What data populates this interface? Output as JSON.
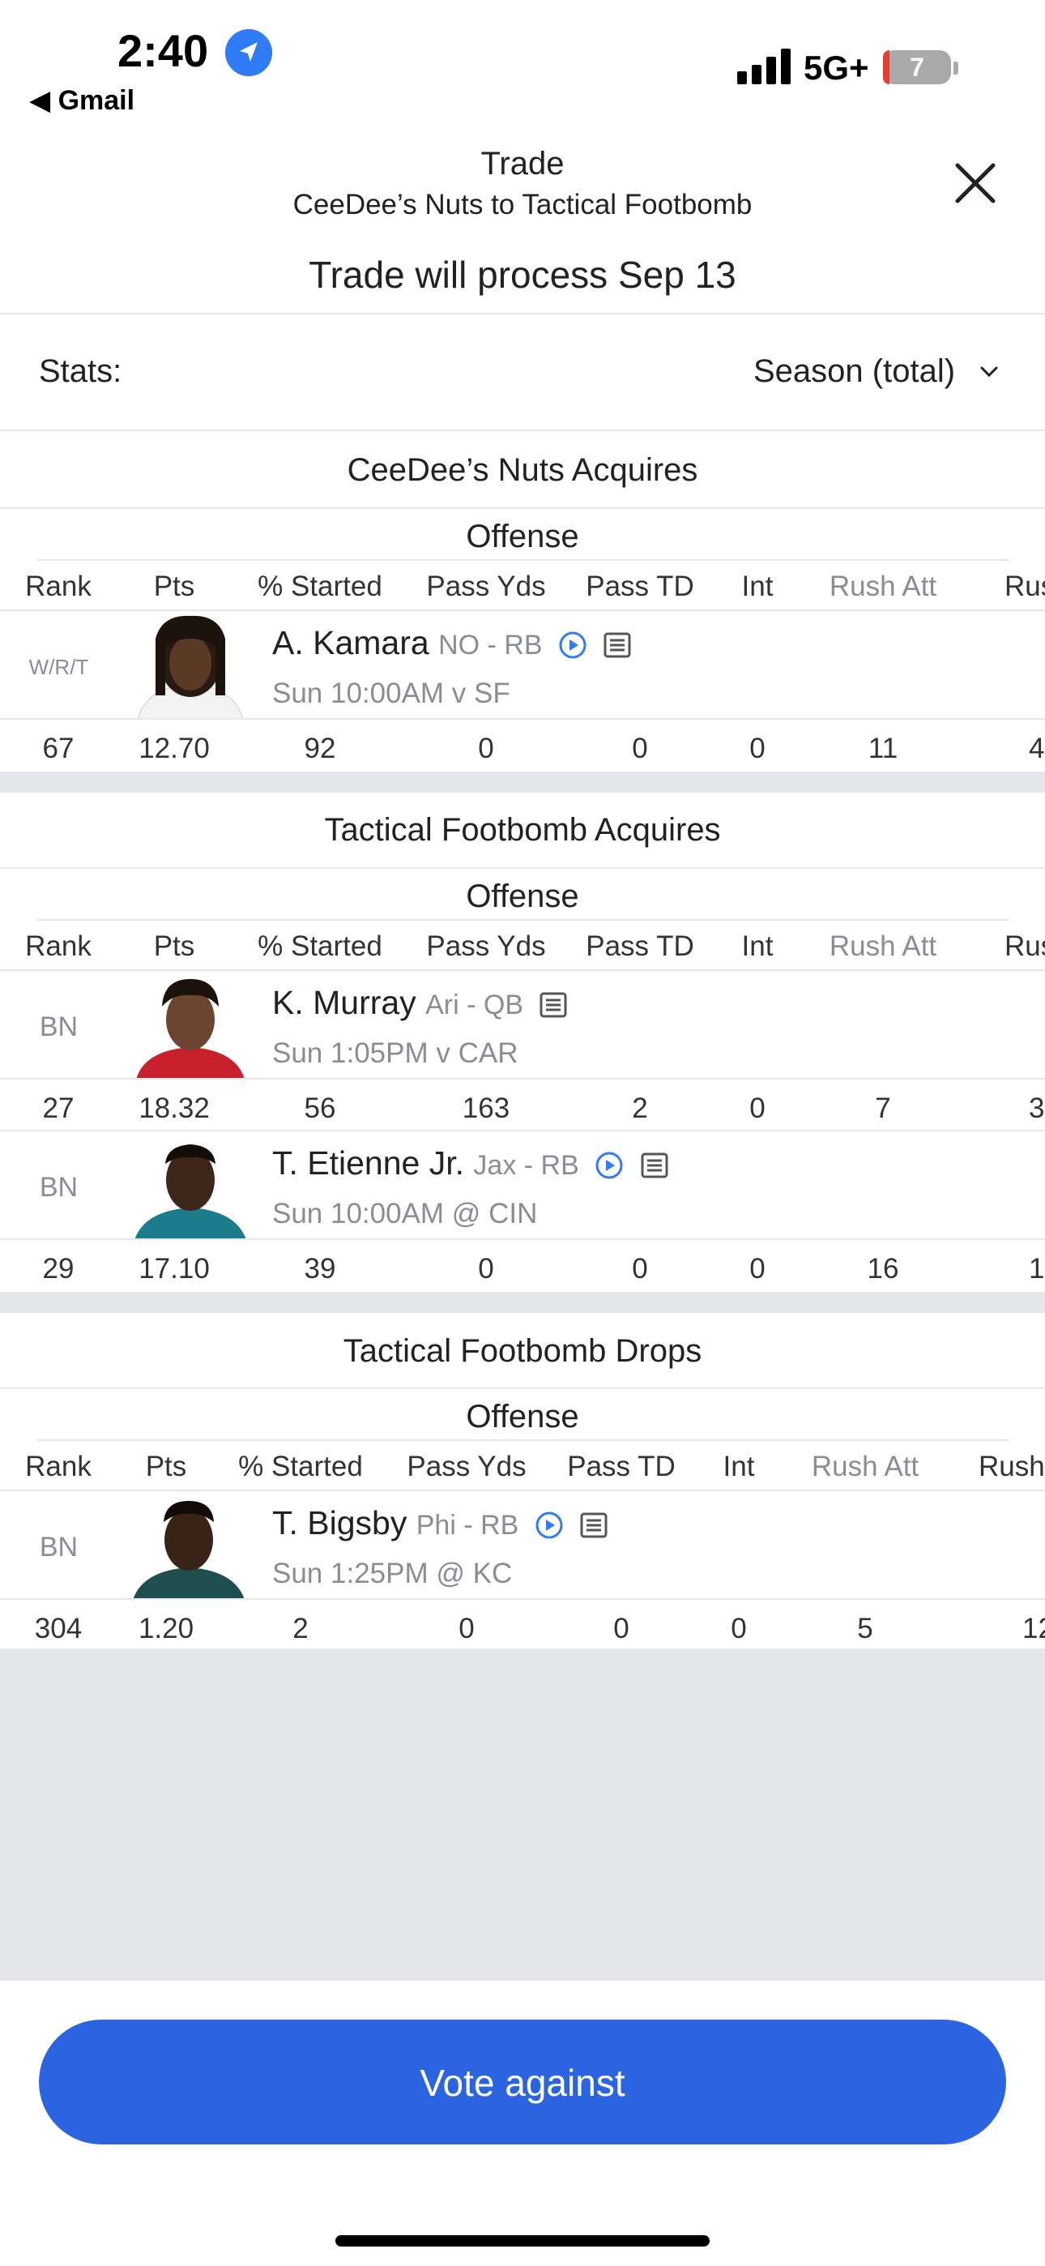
{
  "status_bar": {
    "time": "2:40",
    "back_app": "◀ Gmail",
    "network": "5G+",
    "battery": "7"
  },
  "header": {
    "title": "Trade",
    "subtitle": "CeeDee’s Nuts to Tactical Footbomb",
    "process": "Trade will process Sep 13"
  },
  "stats": {
    "label": "Stats:",
    "selected": "Season (total)"
  },
  "sections": [
    {
      "title": "CeeDee’s Nuts Acquires",
      "group": "Offense",
      "columns": [
        "Rank",
        "Pts",
        "% Started",
        "Pass Yds",
        "Pass TD",
        "Int",
        "Rush Att",
        "Rus"
      ],
      "players": [
        {
          "slot": "W/R/T",
          "name": "A. Kamara",
          "team": "NO - RB",
          "game": "Sun 10:00AM v SF",
          "stats": [
            "67",
            "12.70",
            "92",
            "0",
            "0",
            "0",
            "11",
            "4"
          ]
        }
      ]
    },
    {
      "title": "Tactical Footbomb Acquires",
      "group": "Offense",
      "columns": [
        "Rank",
        "Pts",
        "% Started",
        "Pass Yds",
        "Pass TD",
        "Int",
        "Rush Att",
        "Rus"
      ],
      "players": [
        {
          "slot": "BN",
          "name": "K. Murray",
          "team": "Ari - QB",
          "game": "Sun 1:05PM v CAR",
          "stats": [
            "27",
            "18.32",
            "56",
            "163",
            "2",
            "0",
            "7",
            "3"
          ]
        },
        {
          "slot": "BN",
          "name": "T. Etienne Jr.",
          "team": "Jax - RB",
          "game": "Sun 10:00AM @ CIN",
          "stats": [
            "29",
            "17.10",
            "39",
            "0",
            "0",
            "0",
            "16",
            "1"
          ]
        }
      ]
    },
    {
      "title": "Tactical Footbomb Drops",
      "group": "Offense",
      "columns": [
        "Rank",
        "Pts",
        "% Started",
        "Pass Yds",
        "Pass TD",
        "Int",
        "Rush Att",
        "Rush"
      ],
      "players": [
        {
          "slot": "BN",
          "name": "T. Bigsby",
          "team": "Phi - RB",
          "game": "Sun 1:25PM @ KC",
          "stats": [
            "304",
            "1.20",
            "2",
            "0",
            "0",
            "0",
            "5",
            "12"
          ]
        }
      ]
    }
  ],
  "footer": {
    "button": "Vote against"
  },
  "colors": {
    "accent": "#2b64e0",
    "divider": "#e4e6ea",
    "muted": "#8a8d94"
  },
  "icons": [
    "location-arrow-icon",
    "signal-bars-icon",
    "battery-icon",
    "close-icon",
    "chevron-down-icon",
    "play-video-icon",
    "news-note-icon"
  ]
}
